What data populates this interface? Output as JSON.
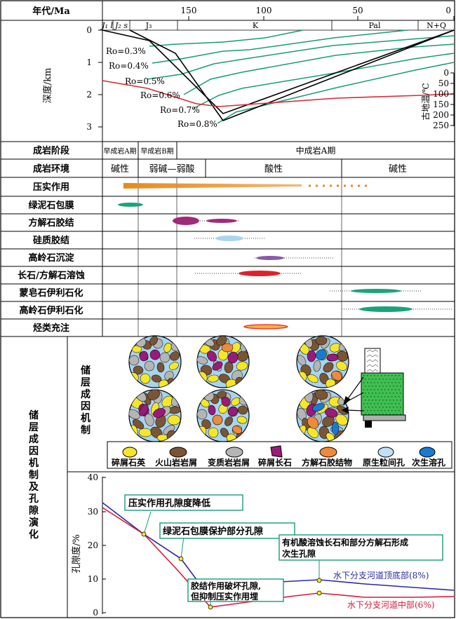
{
  "header": {
    "age_label": "年代/Ma"
  },
  "time_axis": {
    "ticks": [
      {
        "value": 150,
        "label": "150"
      },
      {
        "value": 100,
        "label": "100"
      },
      {
        "value": 50,
        "label": "50"
      },
      {
        "value": 0,
        "label": "0"
      }
    ],
    "periods": [
      "J₁ l",
      "J₂ s",
      "J₃",
      "K",
      "Pal",
      "N+Q"
    ]
  },
  "burial": {
    "depth_label": "深度/km",
    "depth_ticks": [
      "0",
      "1",
      "2",
      "3"
    ],
    "temp_label": "古地温/℃",
    "temp_ticks": [
      "0",
      "50",
      "100",
      "150",
      "200",
      "250"
    ],
    "ro_labels": [
      "Ro=0.3%",
      "Ro=0.4%",
      "Ro=0.5%",
      "Ro=0.6%",
      "Ro=0.7%",
      "Ro=0.8%"
    ],
    "colors": {
      "burial_line": "#000000",
      "ro_line": "#1a9a7a",
      "temp_line": "#d6283a"
    }
  },
  "stages": {
    "row_label": "成岩阶段",
    "items": [
      "早成岩A期",
      "早成岩B期",
      "中成岩A期"
    ]
  },
  "environment": {
    "row_label": "成岩环境",
    "items": [
      "碱性",
      "弱碱—弱酸",
      "酸性",
      "碱性"
    ]
  },
  "processes": [
    {
      "label": "压实作用",
      "color": "#e88a1a"
    },
    {
      "label": "绿泥石包膜",
      "color": "#1aa37a"
    },
    {
      "label": "方解石胶结",
      "color": "#a12a78"
    },
    {
      "label": "硅质胶结",
      "color": "#a9d5f0"
    },
    {
      "label": "高岭石沉淀",
      "color": "#8a5aa8"
    },
    {
      "label": "长石/方解石溶蚀",
      "color": "#e0212a"
    },
    {
      "label": "蒙皂石伊利石化",
      "color": "#1aa37a"
    },
    {
      "label": "高岭石伊利石化",
      "color": "#1aa37a"
    },
    {
      "label": "烃类充注",
      "color": "#e8282a"
    }
  ],
  "mechanism": {
    "outer_label": "储层成因机制及孔隙演化",
    "inner_label": "储层成因机制",
    "legend": [
      {
        "label": "碎屑石英",
        "color": "#f5e62a"
      },
      {
        "label": "火山岩岩屑",
        "color": "#7a5535"
      },
      {
        "label": "变质岩岩屑",
        "color": "#b5b5b5"
      },
      {
        "label": "碎屑长石",
        "color": "#9a1a7a"
      },
      {
        "label": "方解石胶结物",
        "color": "#ee8a3a"
      },
      {
        "label": "原生粒间孔",
        "color": "#bfe0f5"
      },
      {
        "label": "次生溶孔",
        "color": "#1a7ad0"
      }
    ]
  },
  "porosity": {
    "ylabel": "孔隙度/%",
    "yticks": [
      "40",
      "30",
      "20",
      "10",
      "0"
    ],
    "callouts": [
      "压实作用孔隙度降低",
      "绿泥石包膜保护部分孔隙",
      "有机酸溶蚀长石和部分方解石形成",
      "次生孔隙",
      "胶结作用破坏孔隙,",
      "但抑制压实作用埋"
    ],
    "series": [
      {
        "name": "水下分支河道顶底部(8%)",
        "color": "#2a2aa0"
      },
      {
        "name": "水下分支河道中部(6%)",
        "color": "#d61a3a"
      }
    ]
  }
}
